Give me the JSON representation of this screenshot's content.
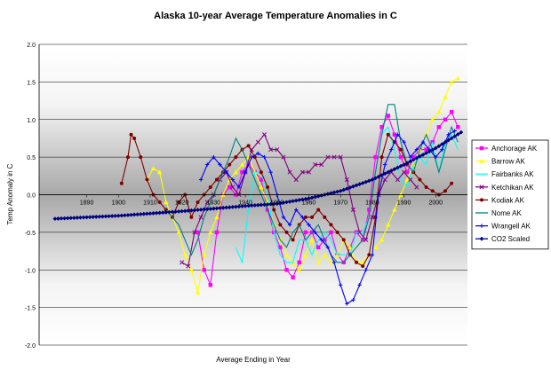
{
  "chart_data": {
    "type": "line",
    "title": "Alaska 10-year Average Temperature Anomalies in C",
    "xlabel": "Average Ending in Year",
    "ylabel": "Temp Anomaly in C",
    "xlim": [
      1890,
      2008
    ],
    "ylim": [
      -2.0,
      2.0
    ],
    "x_ticks": [
      "1890",
      "1900",
      "1910",
      "1920",
      "1930",
      "1940",
      "1950",
      "1960",
      "1970",
      "1980",
      "1990",
      "2000"
    ],
    "y_ticks": [
      "2.0",
      "1.5",
      "1.0",
      "0.5",
      "0.0",
      "-0.5",
      "-1.0",
      "-1.5",
      "-2.0"
    ],
    "grid": true,
    "legend_position": "right",
    "series": [
      {
        "name": "Anchorage AK",
        "color": "#ff00ff",
        "marker": "square",
        "x": [
          1925,
          1927,
          1929,
          1931,
          1933,
          1935,
          1937,
          1939,
          1941,
          1943,
          1945,
          1947,
          1949,
          1951,
          1953,
          1955,
          1957,
          1959,
          1961,
          1963,
          1965,
          1967,
          1969,
          1971,
          1973,
          1975,
          1977,
          1979,
          1981,
          1983,
          1985,
          1987,
          1989,
          1991,
          1993,
          1995,
          1997,
          1999,
          2001,
          2003,
          2005,
          2007
        ],
        "y": [
          -0.5,
          -1.0,
          -1.2,
          -0.5,
          0.0,
          0.1,
          0.0,
          0.3,
          0.4,
          0.3,
          0.2,
          -0.2,
          -0.5,
          -0.7,
          -1.0,
          -1.1,
          -0.9,
          -0.5,
          -0.5,
          -0.7,
          -0.6,
          -0.5,
          -0.8,
          -0.9,
          -0.7,
          -0.5,
          -0.6,
          -0.2,
          0.5,
          0.9,
          1.05,
          0.8,
          0.5,
          0.3,
          0.5,
          0.6,
          0.6,
          0.7,
          0.9,
          1.0,
          1.1,
          0.9
        ]
      },
      {
        "name": "Barrow AK",
        "color": "#ffff00",
        "marker": "triangle",
        "x": [
          1909,
          1911,
          1913,
          1915,
          1917,
          1919,
          1921,
          1923,
          1925,
          1927,
          1929,
          1931,
          1933,
          1935,
          1937,
          1939,
          1941,
          1943,
          1945,
          1947,
          1949,
          1951,
          1953,
          1955,
          1957,
          1959,
          1961,
          1963,
          1965,
          1967,
          1969,
          1971,
          1973,
          1975,
          1977,
          1979,
          1981,
          1983,
          1985,
          1987,
          1989,
          1991,
          1993,
          1995,
          1997,
          1999,
          2001,
          2003,
          2005,
          2007
        ],
        "y": [
          0.2,
          0.35,
          0.3,
          -0.1,
          -0.3,
          -0.5,
          -0.8,
          -1.0,
          -1.3,
          -0.8,
          -0.5,
          -0.3,
          0.0,
          0.2,
          0.3,
          0.4,
          0.5,
          0.3,
          0.1,
          -0.1,
          -0.4,
          -0.6,
          -0.8,
          -0.9,
          -1.0,
          -0.8,
          -0.6,
          -0.9,
          -0.8,
          -0.9,
          -0.8,
          -0.6,
          -0.7,
          -0.9,
          -0.9,
          -0.8,
          -0.7,
          -0.6,
          -0.4,
          -0.2,
          0.0,
          0.2,
          0.4,
          0.6,
          0.8,
          1.0,
          1.1,
          1.3,
          1.5,
          1.55
        ]
      },
      {
        "name": "Fairbanks AK",
        "color": "#00ffff",
        "marker": "none",
        "x": [
          1937,
          1939,
          1941,
          1943,
          1945,
          1947,
          1949,
          1951,
          1953,
          1955,
          1957,
          1959,
          1961,
          1963,
          1965,
          1967,
          1969,
          1971,
          1973,
          1975,
          1977,
          1979,
          1981,
          1983,
          1985,
          1987,
          1989,
          1991,
          1993,
          1995,
          1997,
          1999,
          2001,
          2003,
          2005,
          2007
        ],
        "y": [
          -0.7,
          -0.9,
          -0.2,
          0.3,
          0.3,
          0.0,
          -0.5,
          -0.8,
          -0.9,
          -0.9,
          -0.6,
          -0.6,
          -0.8,
          -0.6,
          -0.5,
          -0.6,
          -0.8,
          -0.8,
          -0.8,
          -0.5,
          -0.5,
          -0.3,
          0.3,
          0.8,
          0.9,
          0.6,
          0.2,
          0.1,
          0.4,
          0.5,
          0.4,
          0.7,
          0.3,
          0.7,
          0.8,
          0.6
        ]
      },
      {
        "name": "Ketchikan AK",
        "color": "#800080",
        "marker": "x",
        "x": [
          1920,
          1922,
          1924,
          1926,
          1928,
          1930,
          1932,
          1934,
          1936,
          1938,
          1940,
          1942,
          1944,
          1946,
          1948,
          1950,
          1952,
          1954,
          1956,
          1958,
          1960,
          1962,
          1964,
          1966,
          1968,
          1970,
          1972,
          1974,
          1976,
          1978,
          1980,
          1982,
          1984,
          1986,
          1988,
          1990,
          1992,
          1994
        ],
        "y": [
          -0.9,
          -0.95,
          -0.5,
          -0.3,
          -0.1,
          0.0,
          0.2,
          0.3,
          0.1,
          0.0,
          0.3,
          0.6,
          0.7,
          0.8,
          0.6,
          0.6,
          0.5,
          0.3,
          0.2,
          0.3,
          0.3,
          0.4,
          0.4,
          0.5,
          0.5,
          0.5,
          0.2,
          -0.2,
          -0.5,
          -0.6,
          -0.3,
          0.0,
          0.2,
          0.3,
          0.2,
          0.3,
          0.2,
          0.1
        ]
      },
      {
        "name": "Kodiak AK",
        "color": "#800000",
        "marker": "circle",
        "x": [
          1901,
          1903,
          1904,
          1905,
          1907,
          1909,
          1911,
          1913,
          1915,
          1917,
          1919,
          1921,
          1923,
          1925,
          1927,
          1929,
          1931,
          1933,
          1935,
          1937,
          1939,
          1941,
          1943,
          1945,
          1947,
          1949,
          1951,
          1953,
          1955,
          1957,
          1959,
          1961,
          1963,
          1965,
          1967,
          1969,
          1971,
          1973,
          1975,
          1977,
          1979,
          1981,
          1983,
          1985,
          1987,
          1989,
          1991,
          1993,
          1995,
          1997,
          1999,
          2001,
          2003,
          2005
        ],
        "y": [
          0.15,
          0.5,
          0.8,
          0.75,
          0.5,
          0.2,
          0.0,
          -0.1,
          -0.2,
          -0.3,
          -0.1,
          0.0,
          -0.3,
          -0.1,
          0.0,
          0.1,
          0.2,
          0.3,
          0.4,
          0.5,
          0.6,
          0.65,
          0.5,
          0.3,
          0.1,
          -0.2,
          -0.4,
          -0.5,
          -0.6,
          -0.4,
          -0.3,
          -0.3,
          -0.2,
          -0.3,
          -0.4,
          -0.5,
          -0.6,
          -0.8,
          -0.9,
          -0.95,
          -0.8,
          -0.3,
          0.5,
          0.8,
          0.7,
          0.6,
          0.4,
          0.3,
          0.2,
          0.1,
          0.05,
          0.0,
          0.05,
          0.15
        ]
      },
      {
        "name": "Nome AK",
        "color": "#008080",
        "marker": "none",
        "x": [
          1915,
          1917,
          1919,
          1921,
          1923,
          1925,
          1927,
          1929,
          1931,
          1933,
          1935,
          1937,
          1939,
          1941,
          1943,
          1945,
          1947,
          1949,
          1951,
          1953,
          1955,
          1957,
          1959,
          1961,
          1963,
          1965,
          1967,
          1969,
          1971,
          1973,
          1975,
          1977,
          1979,
          1981,
          1983,
          1985,
          1987,
          1989,
          1991,
          1993,
          1995,
          1997,
          1999,
          2001,
          2003,
          2005,
          2007
        ],
        "y": [
          -0.2,
          -0.3,
          -0.4,
          -0.6,
          -0.8,
          -0.6,
          -0.3,
          -0.1,
          0.1,
          0.3,
          0.5,
          0.75,
          0.6,
          0.4,
          0.2,
          0.0,
          -0.2,
          -0.4,
          -0.6,
          -0.7,
          -0.5,
          -0.4,
          -0.6,
          -0.5,
          -0.4,
          -0.6,
          -0.8,
          -0.9,
          -0.9,
          -0.8,
          -0.7,
          -0.6,
          -0.3,
          0.3,
          0.8,
          1.2,
          1.2,
          0.7,
          0.4,
          0.3,
          0.6,
          0.8,
          0.6,
          0.3,
          0.6,
          0.9,
          0.7
        ]
      },
      {
        "name": "Wrangell AK",
        "color": "#0000ff",
        "marker": "plus",
        "x": [
          1926,
          1928,
          1930,
          1932,
          1934,
          1936,
          1938,
          1940,
          1942,
          1944,
          1946,
          1948,
          1950,
          1952,
          1954,
          1956,
          1958,
          1960,
          1962,
          1964,
          1966,
          1968,
          1970,
          1972,
          1974,
          1976,
          1978,
          1980,
          1982,
          1984,
          1986,
          1988,
          1990,
          1992,
          1994,
          1996,
          1998,
          2000,
          2002,
          2004,
          2006
        ],
        "y": [
          0.2,
          0.4,
          0.5,
          0.4,
          0.3,
          0.2,
          0.1,
          0.3,
          0.5,
          0.55,
          0.5,
          0.3,
          0.0,
          -0.3,
          -0.4,
          -0.2,
          -0.3,
          -0.4,
          -0.5,
          -0.6,
          -0.7,
          -0.9,
          -1.2,
          -1.45,
          -1.4,
          -1.2,
          -1.0,
          -0.8,
          0.0,
          0.4,
          0.6,
          0.8,
          0.7,
          0.5,
          0.6,
          0.7,
          0.6,
          0.5,
          0.6,
          0.8,
          0.85
        ]
      },
      {
        "name": "CO2 Scaled",
        "color": "#000080",
        "marker": "diamond",
        "x_start": 1880,
        "x_end": 2008,
        "y_curve": [
          [
            1880,
            -0.32
          ],
          [
            1900,
            -0.28
          ],
          [
            1920,
            -0.22
          ],
          [
            1940,
            -0.15
          ],
          [
            1950,
            -0.12
          ],
          [
            1960,
            -0.05
          ],
          [
            1970,
            0.05
          ],
          [
            1980,
            0.2
          ],
          [
            1990,
            0.4
          ],
          [
            2000,
            0.62
          ],
          [
            2008,
            0.83
          ]
        ]
      }
    ]
  }
}
